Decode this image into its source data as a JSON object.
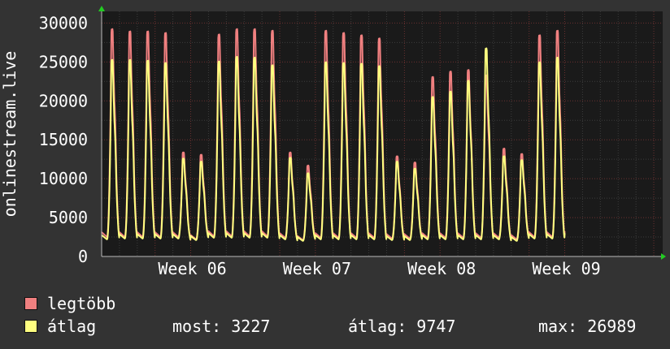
{
  "chart_data": {
    "type": "line",
    "ylabel": "onlinestream.live",
    "ylim": [
      0,
      31500
    ],
    "yticks": [
      0,
      5000,
      10000,
      15000,
      20000,
      25000,
      30000
    ],
    "xticks": [
      "Week 06",
      "Week 07",
      "Week 08",
      "Week 09"
    ],
    "xtick_days": [
      6,
      13,
      20,
      27
    ],
    "x_unit": "day",
    "xlim": [
      1,
      32.5
    ],
    "grid": true,
    "background": "#1a1a1a",
    "series": [
      {
        "name": "legtöbb",
        "color": "#f08080",
        "daily_peaks": [
          29500,
          29200,
          29200,
          29000,
          13500,
          13200,
          28800,
          29500,
          29500,
          29300,
          13500,
          11800,
          29300,
          29000,
          28700,
          28300,
          13000,
          12200,
          23300,
          24000,
          24200,
          23500,
          14000,
          13300,
          28700,
          29300
        ],
        "daily_troughs": [
          2500,
          2500,
          2500,
          2500,
          2500,
          2200,
          2600,
          2600,
          2600,
          2600,
          2400,
          2100,
          2400,
          2400,
          2400,
          2400,
          2300,
          2300,
          2400,
          2400,
          2400,
          2400,
          2400,
          2200,
          2500,
          2500
        ]
      },
      {
        "name": "átlag",
        "color": "#ffff80",
        "daily_peaks": [
          25500,
          25500,
          25400,
          25100,
          12700,
          12300,
          25300,
          25900,
          25800,
          24800,
          12800,
          10800,
          25200,
          25100,
          25000,
          24700,
          12300,
          11400,
          20700,
          21400,
          22800,
          27000,
          13000,
          12500,
          25200,
          25800
        ],
        "daily_troughs": [
          2200,
          2300,
          2300,
          2300,
          2300,
          2100,
          2400,
          2400,
          2400,
          2400,
          2200,
          2000,
          2200,
          2200,
          2200,
          2200,
          2100,
          2100,
          2200,
          2200,
          2200,
          2200,
          2200,
          2000,
          2300,
          2300
        ]
      }
    ]
  },
  "legend": {
    "max_label": "legtöbb",
    "avg_label": "átlag",
    "max_color": "#f08080",
    "avg_color": "#ffff80"
  },
  "stats": {
    "current": "most: 3227",
    "average": "átlag: 9747",
    "maximum": "max: 26989"
  }
}
